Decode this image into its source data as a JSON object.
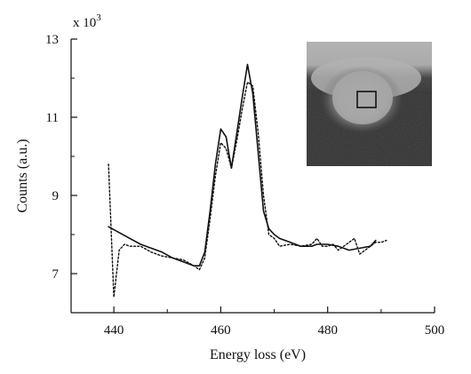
{
  "chart_data": {
    "type": "line",
    "xlabel": "Energy loss (eV)",
    "ylabel": "Counts (a.u.)",
    "y_multiplier_label": "x 10",
    "y_multiplier_exp": "3",
    "xlim": [
      432,
      500
    ],
    "ylim": [
      6,
      13
    ],
    "x_ticks": [
      440,
      460,
      480,
      500
    ],
    "x_minor_ticks": [
      450,
      470,
      490
    ],
    "y_ticks": [
      7,
      9,
      11,
      13
    ],
    "y_minor_ticks": [
      8,
      10,
      12
    ],
    "grid": false,
    "legend": "none",
    "series": [
      {
        "style": "solid",
        "color": "#111111",
        "x": [
          439,
          441,
          443,
          445,
          447,
          449,
          451,
          453,
          455,
          456,
          457,
          458,
          459,
          460,
          461,
          462,
          463,
          464,
          465,
          466,
          467,
          468,
          469,
          470,
          471,
          473,
          475,
          477,
          478,
          480,
          482,
          484,
          486,
          488,
          489
        ],
        "y": [
          8.2,
          8.05,
          7.9,
          7.75,
          7.65,
          7.55,
          7.4,
          7.3,
          7.2,
          7.2,
          7.55,
          8.6,
          9.8,
          10.7,
          10.5,
          9.7,
          10.6,
          11.5,
          12.35,
          11.6,
          10.1,
          8.6,
          8.15,
          8.0,
          7.9,
          7.8,
          7.7,
          7.7,
          7.75,
          7.75,
          7.7,
          7.6,
          7.65,
          7.7,
          7.85
        ]
      },
      {
        "style": "dotted",
        "color": "#111111",
        "x": [
          439,
          440,
          441,
          442,
          443,
          445,
          447,
          449,
          451,
          453,
          455,
          456,
          457,
          458,
          459,
          460,
          461,
          462,
          463,
          464,
          465,
          466,
          467,
          468,
          469,
          470,
          471,
          473,
          475,
          477,
          478,
          479,
          480,
          481,
          482,
          483,
          484,
          485,
          486,
          487,
          488,
          489,
          490,
          491
        ],
        "y": [
          9.8,
          6.4,
          7.6,
          7.75,
          7.7,
          7.7,
          7.55,
          7.45,
          7.4,
          7.35,
          7.2,
          7.1,
          7.4,
          8.4,
          9.5,
          10.35,
          10.2,
          9.7,
          10.4,
          11.2,
          11.9,
          11.8,
          10.6,
          9.0,
          8.0,
          7.9,
          7.7,
          7.75,
          7.7,
          7.75,
          7.9,
          7.7,
          7.7,
          7.75,
          7.6,
          7.7,
          7.8,
          7.9,
          7.5,
          7.6,
          7.7,
          7.8,
          7.8,
          7.85
        ]
      }
    ],
    "inset": {
      "kind": "microscopy-image",
      "position": "top-right",
      "description_icon": "tem-image-icon"
    }
  }
}
